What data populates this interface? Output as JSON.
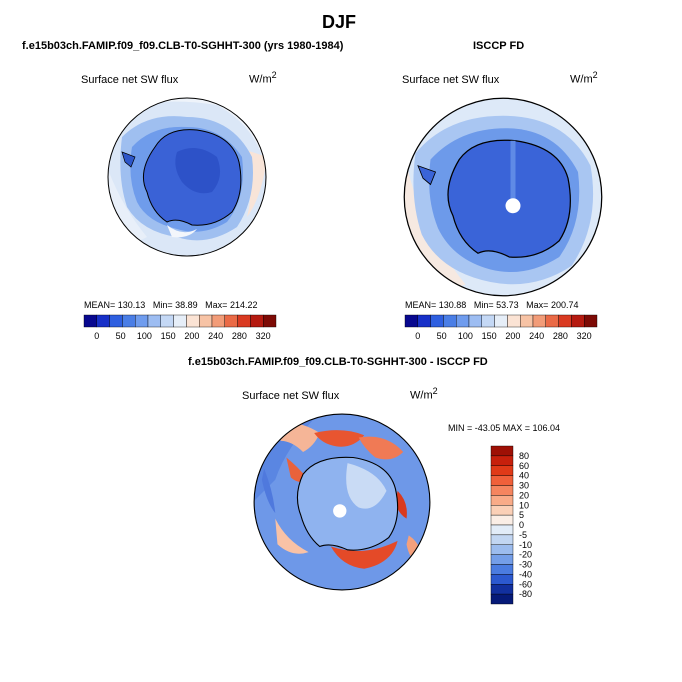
{
  "page": {
    "title": "DJF"
  },
  "panels": [
    {
      "header": "f.e15b03ch.FAMIP.f09_f09.CLB-T0-SGHHT-300 (yrs 1980-1984)",
      "label": "Surface net SW flux",
      "units": "W/m",
      "units_sup": "2",
      "stats": {
        "mean_label": "MEAN=",
        "mean": "130.13",
        "min_label": "Min=",
        "min": "38.89",
        "max_label": "Max=",
        "max": "214.22"
      }
    },
    {
      "header": "ISCCP FD",
      "label": "Surface net SW flux",
      "units": "W/m",
      "units_sup": "2",
      "stats": {
        "mean_label": "MEAN=",
        "mean": "130.88",
        "min_label": "Min=",
        "min": "53.73",
        "max_label": "Max=",
        "max": "200.74"
      }
    },
    {
      "header": "f.e15b03ch.FAMIP.f09_f09.CLB-T0-SGHHT-300 - ISCCP FD",
      "label": "Surface net SW flux",
      "units": "W/m",
      "units_sup": "2",
      "stats_text": "MIN = -43.05 MAX = 106.04"
    }
  ],
  "colorbar_abs": {
    "ticks": [
      "0",
      "50",
      "100",
      "150",
      "200",
      "240",
      "280",
      "320"
    ],
    "colors": [
      "#08088f",
      "#1730c8",
      "#2e5fe0",
      "#4a7ee6",
      "#6f9cee",
      "#9dbdf2",
      "#c4d8f5",
      "#e6eef8",
      "#fbe3d4",
      "#f7c3a5",
      "#f29c78",
      "#ea6a46",
      "#d93a21",
      "#b51a10",
      "#7d0a05"
    ]
  },
  "colorbar_diff": {
    "labels": [
      "80",
      "60",
      "40",
      "30",
      "20",
      "10",
      "5",
      "0",
      "-5",
      "-10",
      "-20",
      "-30",
      "-40",
      "-60",
      "-80"
    ],
    "colors": [
      "#9e1005",
      "#c7200c",
      "#e03a18",
      "#f0603a",
      "#f5855f",
      "#f9ab88",
      "#fbd0b7",
      "#fbeee6",
      "#e2ecf8",
      "#c2d6f2",
      "#9cbcee",
      "#749ee8",
      "#4b7ce0",
      "#2c59cf",
      "#12309e",
      "#061a78"
    ]
  },
  "maps": {
    "icon_names": [
      "polar-stereographic-map-model",
      "polar-stereographic-map-obs",
      "polar-stereographic-map-diff"
    ],
    "colors": {
      "ocean_model": "#d9e6f7",
      "ocean_obs": "#dce8f7",
      "continent_model": "#3b63d6",
      "continent_obs": "#3a67d8",
      "coast": "#000000",
      "diff_base": "#6b95e6",
      "diff_warm": "#e04a25"
    }
  }
}
